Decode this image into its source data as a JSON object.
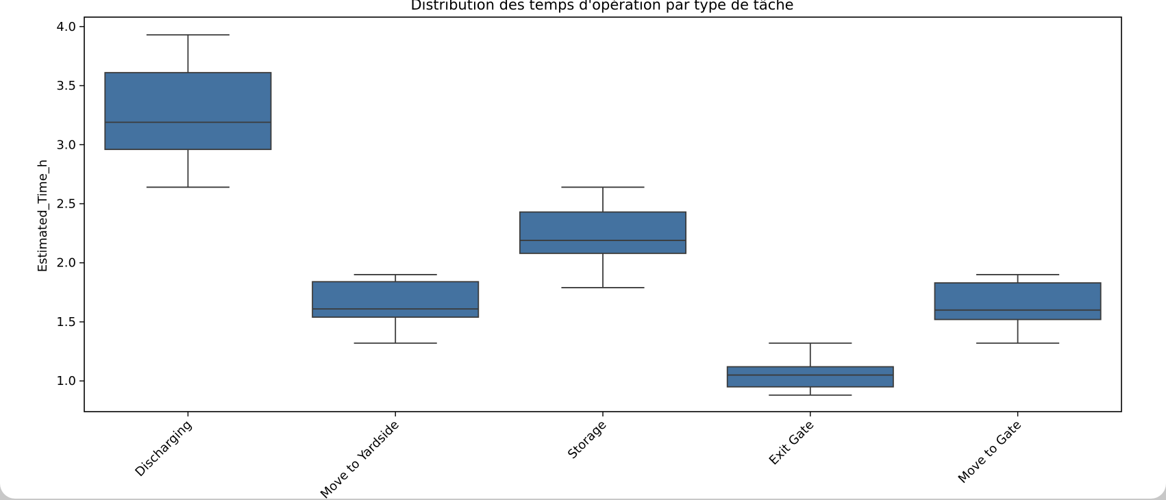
{
  "chart_data": {
    "type": "box",
    "title": "Distribution des temps d'opération par type de tâche",
    "xlabel": "",
    "ylabel": "Estimated_Time_h",
    "ylim": [
      0.74,
      4.08
    ],
    "yticks": [
      "1.0",
      "1.5",
      "2.0",
      "2.5",
      "3.0",
      "3.5",
      "4.0"
    ],
    "categories": [
      "Discharging",
      "Move to Yardside",
      "Storage",
      "Exit Gate",
      "Move to Gate"
    ],
    "boxes": [
      {
        "whisker_low": 2.64,
        "q1": 2.96,
        "median": 3.19,
        "q3": 3.61,
        "whisker_high": 3.93
      },
      {
        "whisker_low": 1.32,
        "q1": 1.54,
        "median": 1.61,
        "q3": 1.84,
        "whisker_high": 1.9
      },
      {
        "whisker_low": 1.79,
        "q1": 2.08,
        "median": 2.19,
        "q3": 2.43,
        "whisker_high": 2.64
      },
      {
        "whisker_low": 0.88,
        "q1": 0.95,
        "median": 1.05,
        "q3": 1.12,
        "whisker_high": 1.32
      },
      {
        "whisker_low": 1.32,
        "q1": 1.52,
        "median": 1.6,
        "q3": 1.83,
        "whisker_high": 1.9
      }
    ],
    "box_color": "#4472a0",
    "line_color": "#3b3b3b",
    "grid": false,
    "legend": "none"
  }
}
